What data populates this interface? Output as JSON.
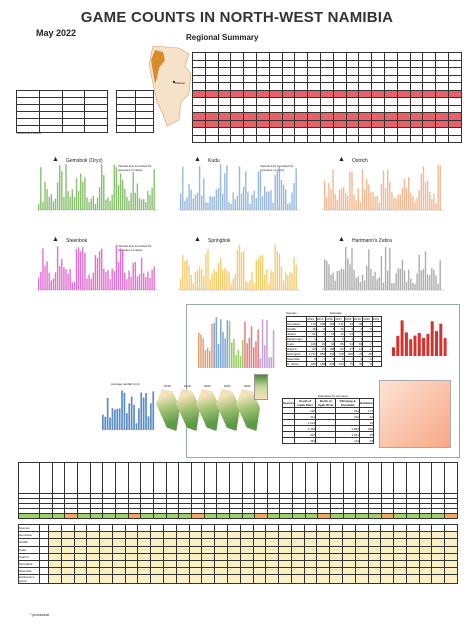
{
  "header": {
    "title": "GAME COUNTS IN NORTH-WEST NAMIBIA",
    "month": "May 2022",
    "subtitle": "Regional Summary"
  },
  "map": {
    "label": "Wabasi"
  },
  "left_table": {
    "last_row_label": "Hartmann's Zebra"
  },
  "species_panels": [
    {
      "name": "Gemsbok (Oryx)",
      "note": "Vertical axis truncated for purposes of clarity",
      "color": "#6ab04c"
    },
    {
      "name": "Kudu",
      "note": "Vertical axis truncated for purposes of clarity",
      "color": "#7fa6d6"
    },
    {
      "name": "Ostrich",
      "note": "",
      "color": "#f0a877"
    },
    {
      "name": "Steenbok",
      "note": "Vertical axis truncated for purposes of clarity",
      "color": "#d94fc4"
    },
    {
      "name": "Springbok",
      "note": "",
      "color": "#f2c14e"
    },
    {
      "name": "Hartmann's Zebra",
      "note": "",
      "color": "#9a9a9a"
    }
  ],
  "mid_section": {
    "table1_header": [
      "Species",
      "Estimate"
    ],
    "table1_years": [
      "2014",
      "2015",
      "2016",
      "2017",
      "2018",
      "2019",
      "2020",
      "2021"
    ],
    "table1_rows": [
      {
        "species": "Gemsbok",
        "vals": [
          "173",
          "208",
          "163",
          "131",
          "43",
          "35",
          "1",
          ""
        ]
      },
      {
        "species": "Giraffe",
        "vals": [
          "18",
          "9",
          "6",
          "12",
          "3",
          "6",
          "3",
          ""
        ]
      },
      {
        "species": "Jackal",
        "vals": [
          "61",
          "9",
          "15",
          "15",
          "13",
          "2",
          "",
          ""
        ]
      },
      {
        "species": "Klipspringer",
        "vals": [
          "1",
          "1",
          "1",
          "5",
          "1",
          "1",
          "",
          ""
        ]
      },
      {
        "species": "Kudu",
        "vals": [
          "138",
          "96",
          "90",
          "86",
          "64",
          "84",
          "7",
          ""
        ]
      },
      {
        "species": "Ostrich",
        "vals": [
          "68",
          "75",
          "108",
          "52",
          "27",
          "12",
          "1",
          ""
        ]
      },
      {
        "species": "Springbok",
        "vals": [
          "1737",
          "855",
          "706",
          "728",
          "395",
          "76",
          "48",
          ""
        ]
      },
      {
        "species": "Steenbok",
        "vals": [
          "6",
          "7",
          "5",
          "6",
          "7",
          "9",
          "6",
          ""
        ]
      },
      {
        "species": "H. Zebra",
        "vals": [
          "189",
          "188",
          "265",
          "194",
          "75",
          "46",
          "8",
          ""
        ]
      }
    ],
    "rainfall_title": "Average rainfall (mm)",
    "map_years": [
      "2018",
      "2019",
      "2020",
      "2021",
      "2022"
    ],
    "table2_title": "Estimates by sub-area",
    "table2_header": [
      "Species",
      "South of Ugab River",
      "North of Ugab River",
      "Palmwag & Etendeka",
      "Hobatere"
    ],
    "table2_rows": [
      [
        "",
        "120",
        "",
        "244",
        "174"
      ],
      [
        "",
        "211",
        "",
        "342",
        "42"
      ],
      [
        "",
        "1,224",
        "",
        "",
        "16"
      ],
      [
        "",
        "2,463",
        "",
        "4,862",
        "348"
      ],
      [
        "",
        "307",
        "",
        "3,061",
        "25"
      ],
      [
        "",
        "463",
        "",
        "113",
        "18"
      ]
    ]
  },
  "bottom": {
    "species_labels": [
      "Species",
      "Gemsbok",
      "Giraffe",
      "Kudu",
      "Ostrich",
      "Springbok",
      "Steenbok",
      "Hartmann's zebra"
    ],
    "footnote": "* provisional"
  }
}
